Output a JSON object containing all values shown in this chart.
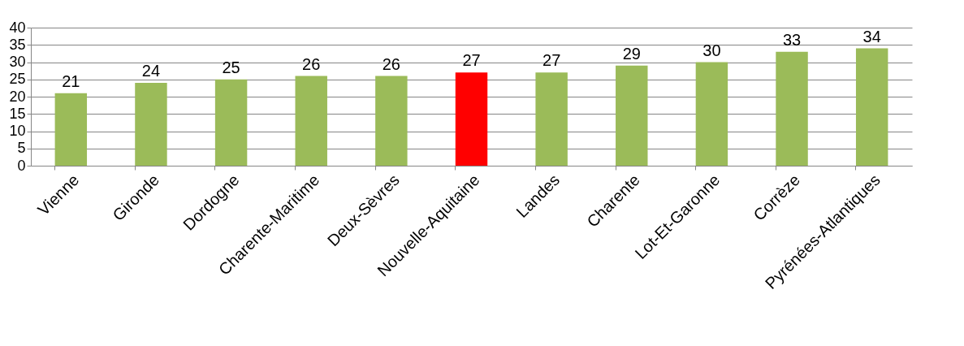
{
  "chart_data": {
    "type": "bar",
    "categories": [
      "Vienne",
      "Gironde",
      "Dordogne",
      "Charente-Maritime",
      "Deux-Sèvres",
      "Nouvelle-Aquitaine",
      "Landes",
      "Charente",
      "Lot-Et-Garonne",
      "Corrèze",
      "Pyrénées-Atlantiques"
    ],
    "values": [
      21,
      24,
      25,
      26,
      26,
      27,
      27,
      29,
      30,
      33,
      34
    ],
    "colors": [
      "#9bbb59",
      "#9bbb59",
      "#9bbb59",
      "#9bbb59",
      "#9bbb59",
      "#ff0000",
      "#9bbb59",
      "#9bbb59",
      "#9bbb59",
      "#9bbb59",
      "#9bbb59"
    ],
    "ylim": [
      0,
      40
    ],
    "yticks": [
      0,
      5,
      10,
      15,
      20,
      25,
      30,
      35,
      40
    ],
    "grid": "y",
    "data_labels": true
  }
}
